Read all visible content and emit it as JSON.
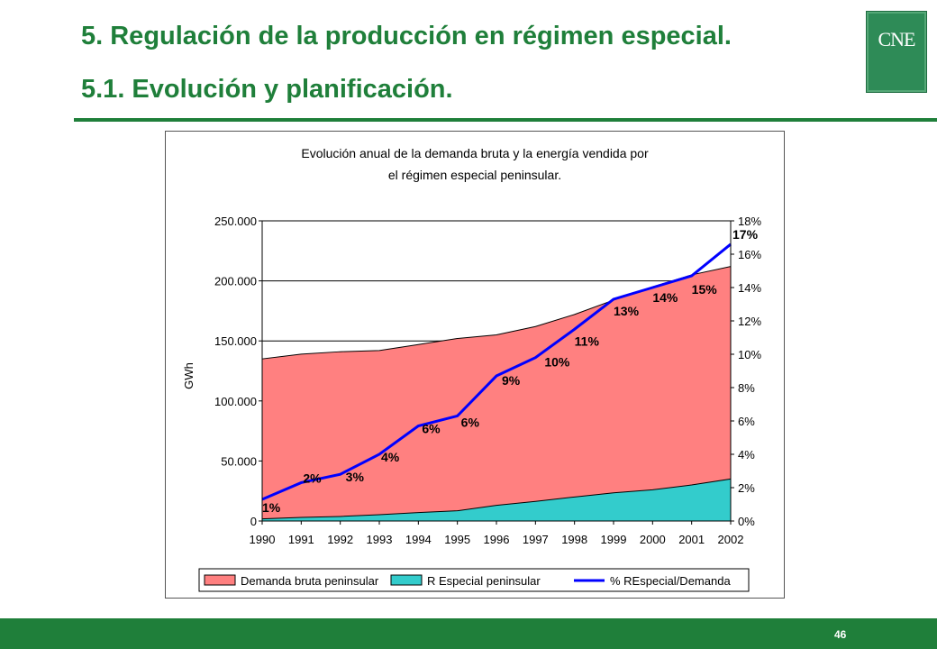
{
  "slide": {
    "title_line1": "5. Regulación de la producción en régimen especial.",
    "title_line2": "5.1. Evolución y planificación.",
    "logo_text": "CNE",
    "page_number": "46",
    "brand_color": "#1f7f3a"
  },
  "chart_data": {
    "type": "area",
    "title_line1": "Evolución anual de la demanda bruta y la energía vendida por",
    "title_line2": "el régimen especial peninsular.",
    "ylabel": "GWh",
    "categories": [
      "1990",
      "1991",
      "1992",
      "1993",
      "1994",
      "1995",
      "1996",
      "1997",
      "1998",
      "1999",
      "2000",
      "2001",
      "2002"
    ],
    "ylim": [
      0,
      250000
    ],
    "y_ticks": [
      0,
      50000,
      100000,
      150000,
      200000,
      250000
    ],
    "y_tick_labels": [
      "0",
      "50.000",
      "100.000",
      "150.000",
      "200.000",
      "250.000"
    ],
    "y2lim": [
      0,
      18
    ],
    "y2_ticks": [
      0,
      2,
      4,
      6,
      8,
      10,
      12,
      14,
      16,
      18
    ],
    "y2_tick_labels": [
      "0%",
      "2%",
      "4%",
      "6%",
      "8%",
      "10%",
      "12%",
      "14%",
      "16%",
      "18%"
    ],
    "grid": true,
    "legend_position": "bottom",
    "series": [
      {
        "name": "Demanda bruta peninsular",
        "type": "area",
        "axis": "left",
        "color": "#ff8080",
        "values": [
          135000,
          139000,
          141000,
          142000,
          147000,
          152000,
          155000,
          162000,
          172000,
          184000,
          195000,
          205000,
          212000
        ]
      },
      {
        "name": "R Especial peninsular",
        "type": "area",
        "axis": "left",
        "color": "#33cccc",
        "values": [
          1800,
          3000,
          3800,
          5300,
          7000,
          8500,
          13000,
          16300,
          20000,
          23500,
          26000,
          30000,
          35000
        ]
      },
      {
        "name": "% REspecial/Demanda",
        "type": "line",
        "axis": "right",
        "color": "#0000ff",
        "values": [
          1.3,
          2.3,
          2.8,
          4.0,
          5.7,
          6.3,
          8.7,
          9.8,
          11.5,
          13.3,
          14.0,
          14.7,
          16.6
        ]
      }
    ],
    "data_labels": [
      "1%",
      "2%",
      "3%",
      "4%",
      "6%",
      "6%",
      "9%",
      "10%",
      "11%",
      "13%",
      "14%",
      "15%",
      "17%"
    ]
  }
}
